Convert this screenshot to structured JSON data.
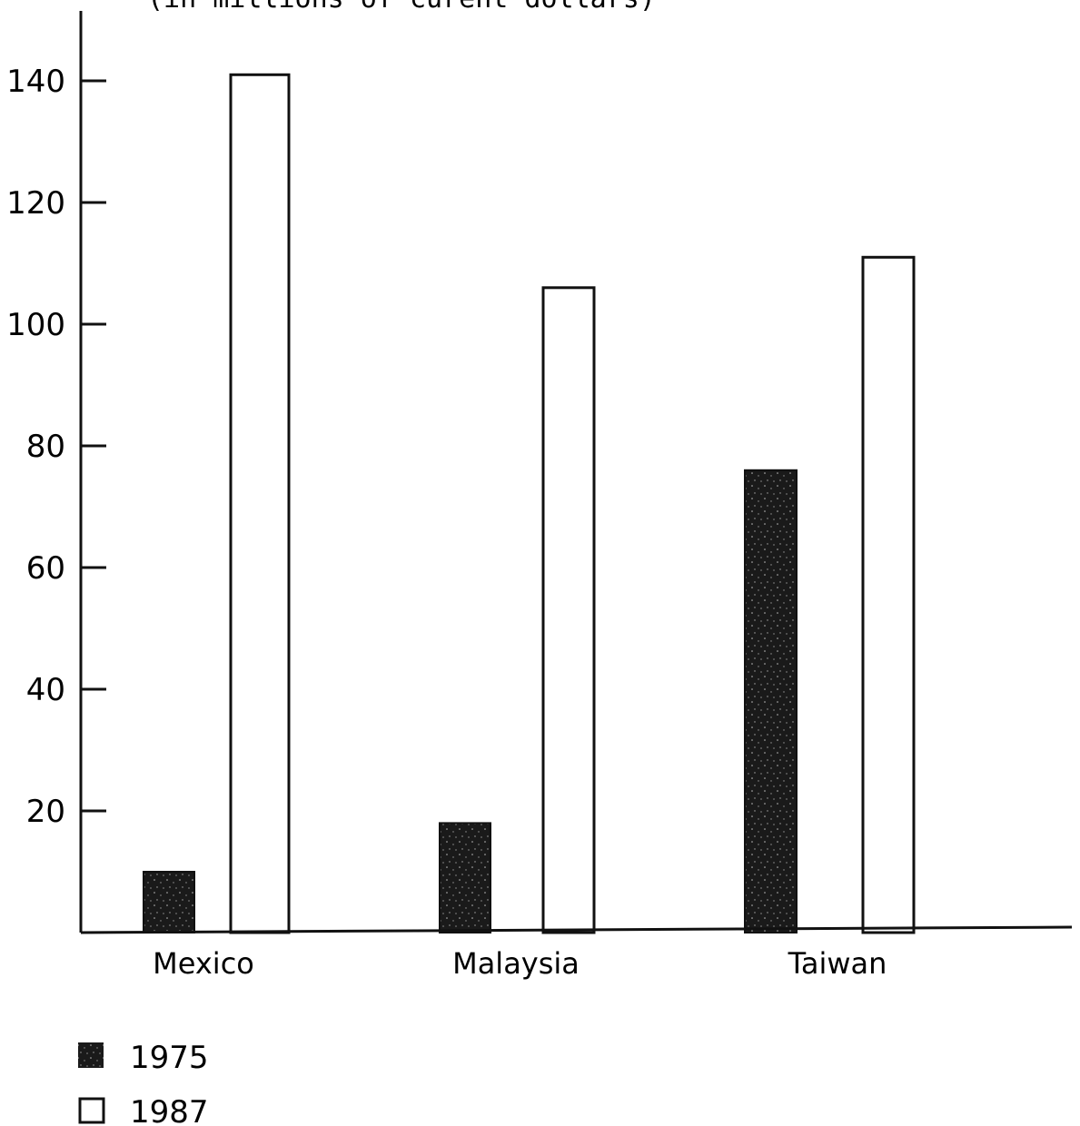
{
  "chart_data": {
    "type": "bar",
    "subtitle": "(in millions of curent dollars)",
    "categories": [
      "Mexico",
      "Malaysia",
      "Taiwan"
    ],
    "series": [
      {
        "name": "1975",
        "values": [
          10,
          18,
          76
        ],
        "color": "#1a1a1a",
        "pattern": "speckled-solid"
      },
      {
        "name": "1987",
        "values": [
          141,
          106,
          111
        ],
        "color": "#ffffff",
        "pattern": "outline"
      }
    ],
    "ylim": [
      0,
      150
    ],
    "yticks": [
      20,
      40,
      60,
      80,
      100,
      120,
      140
    ],
    "grid": false,
    "legend_position": "bottom-left",
    "xlabel": "",
    "ylabel": ""
  }
}
